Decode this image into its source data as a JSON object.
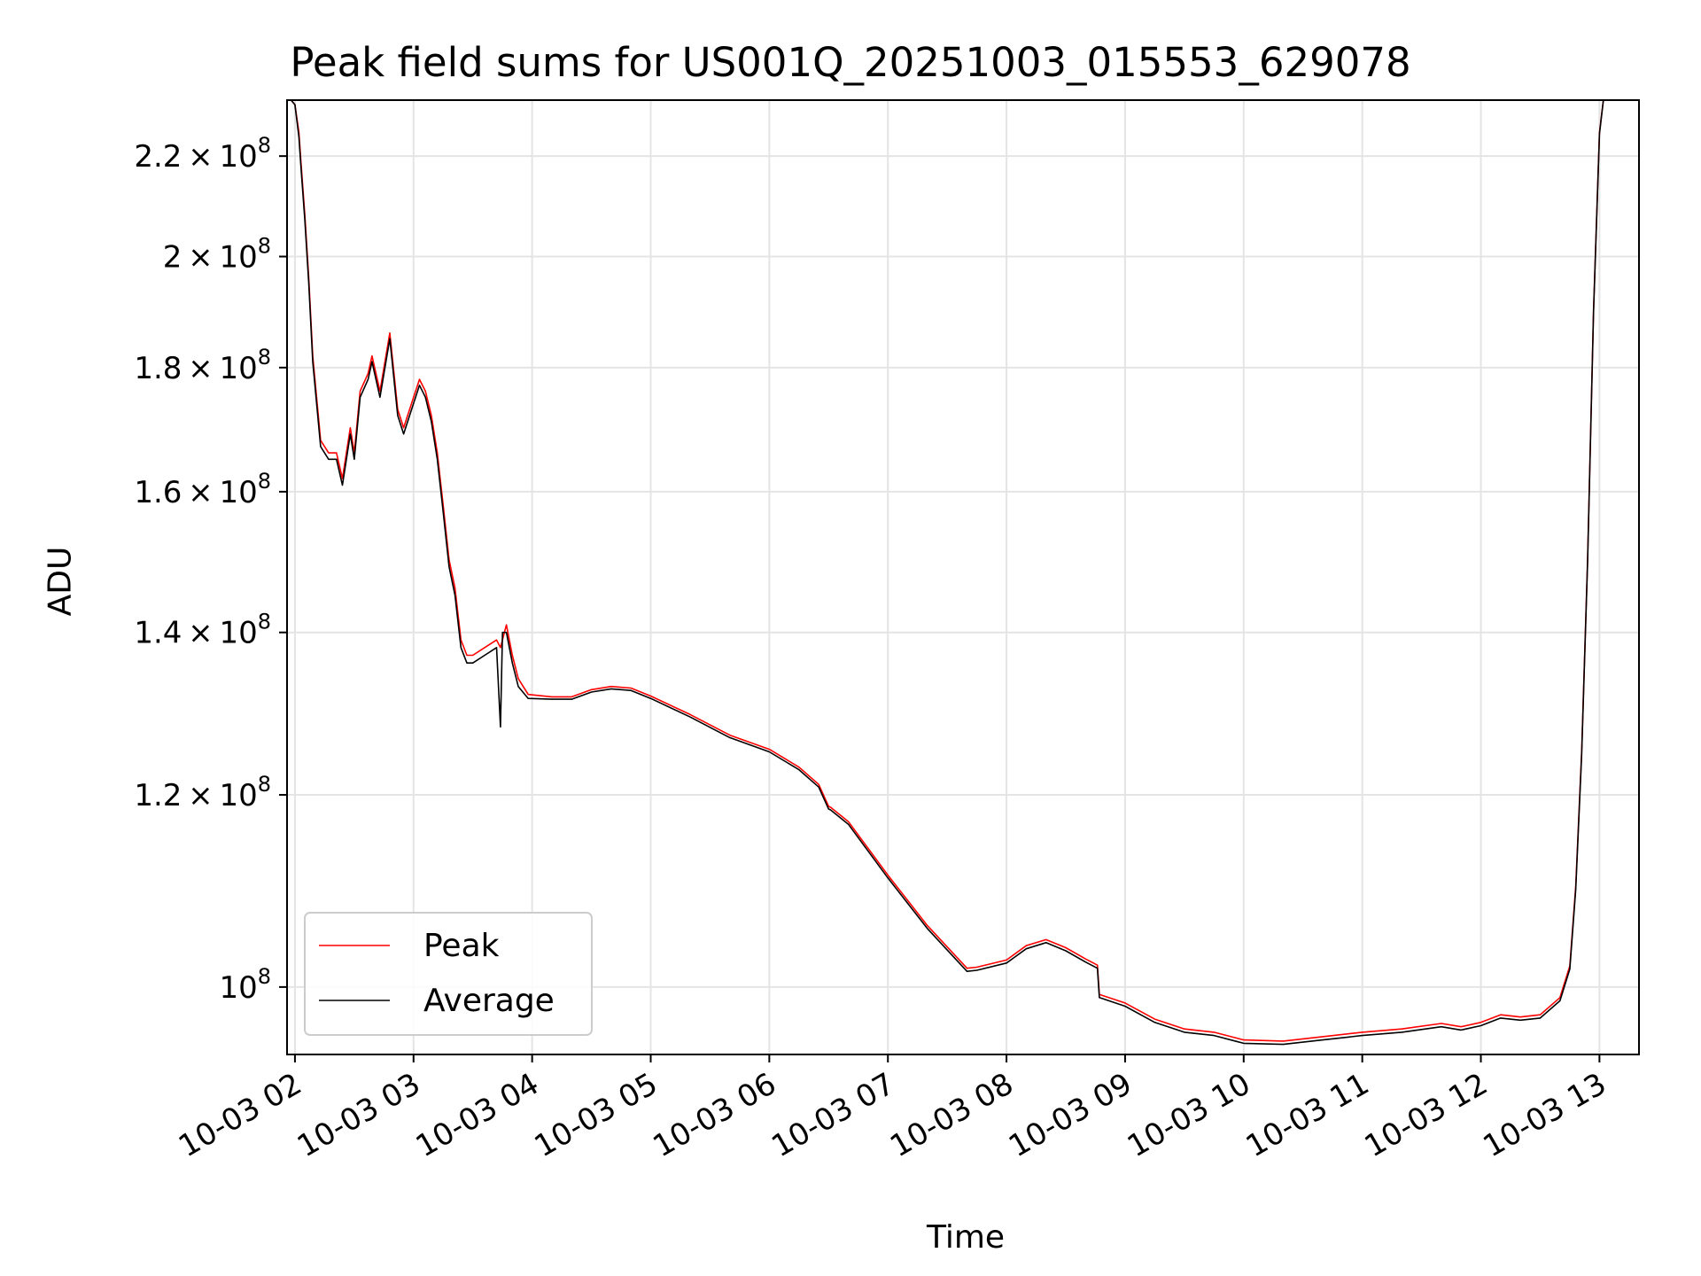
{
  "chart_data": {
    "type": "line",
    "title": "Peak field sums for US001Q_20251003_015553_629078",
    "xlabel": "Time",
    "ylabel": "ADU",
    "y_scale": "log",
    "grid": true,
    "legend_position": "lower left",
    "x_tick_labels": [
      "10-03 02",
      "10-03 03",
      "10-03 04",
      "10-03 05",
      "10-03 06",
      "10-03 07",
      "10-03 08",
      "10-03 09",
      "10-03 10",
      "10-03 11",
      "10-03 12",
      "10-03 13"
    ],
    "y_ticks": [
      {
        "value": 100000000,
        "mant": "",
        "exp": "10",
        "pow": "8"
      },
      {
        "value": 120000000,
        "mant": "1.2",
        "exp": "10",
        "pow": "8"
      },
      {
        "value": 140000000,
        "mant": "1.4",
        "exp": "10",
        "pow": "8"
      },
      {
        "value": 160000000,
        "mant": "1.6",
        "exp": "10",
        "pow": "8"
      },
      {
        "value": 180000000,
        "mant": "1.8",
        "exp": "10",
        "pow": "8"
      },
      {
        "value": 200000000,
        "mant": "2",
        "exp": "10",
        "pow": "8"
      },
      {
        "value": 220000000,
        "mant": "2.2",
        "exp": "10",
        "pow": "8"
      }
    ],
    "xlim": [
      "10-03 01:56",
      "10-03 13:20"
    ],
    "ylim": [
      93800000,
      232000000
    ],
    "series": [
      {
        "name": "Peak",
        "color": "#ff0000",
        "x": [
          "10-03 01:58",
          "10-03 02:00",
          "10-03 02:02",
          "10-03 02:03",
          "10-03 02:05",
          "10-03 02:07",
          "10-03 02:09",
          "10-03 02:13",
          "10-03 02:17",
          "10-03 02:21",
          "10-03 02:24",
          "10-03 02:28",
          "10-03 02:30",
          "10-03 02:33",
          "10-03 02:37",
          "10-03 02:39",
          "10-03 02:43",
          "10-03 02:48",
          "10-03 02:52",
          "10-03 02:55",
          "10-03 02:59",
          "10-03 03:03",
          "10-03 03:06",
          "10-03 03:09",
          "10-03 03:12",
          "10-03 03:15",
          "10-03 03:18",
          "10-03 03:21",
          "10-03 03:24",
          "10-03 03:27",
          "10-03 03:30",
          "10-03 03:36",
          "10-03 03:42",
          "10-03 03:44",
          "10-03 03:47",
          "10-03 03:50",
          "10-03 03:53",
          "10-03 03:58",
          "10-03 04:10",
          "10-03 04:20",
          "10-03 04:30",
          "10-03 04:40",
          "10-03 04:50",
          "10-03 05:00",
          "10-03 05:20",
          "10-03 05:40",
          "10-03 06:00",
          "10-03 06:15",
          "10-03 06:25",
          "10-03 06:30",
          "10-03 06:31",
          "10-03 06:40",
          "10-03 07:00",
          "10-03 07:20",
          "10-03 07:40",
          "10-03 07:45",
          "10-03 08:00",
          "10-03 08:10",
          "10-03 08:20",
          "10-03 08:30",
          "10-03 08:40",
          "10-03 08:46",
          "10-03 08:47",
          "10-03 09:00",
          "10-03 09:15",
          "10-03 09:30",
          "10-03 09:45",
          "10-03 10:00",
          "10-03 10:20",
          "10-03 10:40",
          "10-03 11:00",
          "10-03 11:20",
          "10-03 11:40",
          "10-03 11:50",
          "10-03 12:00",
          "10-03 12:10",
          "10-03 12:20",
          "10-03 12:30",
          "10-03 12:40",
          "10-03 12:45",
          "10-03 12:48",
          "10-03 12:51",
          "10-03 12:54",
          "10-03 12:57",
          "10-03 13:00",
          "10-03 13:02"
        ],
        "y": [
          232000000,
          231000000,
          225000000,
          219000000,
          208000000,
          196000000,
          182000000,
          168000000,
          166000000,
          166000000,
          162000000,
          170000000,
          166000000,
          176000000,
          179000000,
          182000000,
          176000000,
          186000000,
          173000000,
          170000000,
          174000000,
          178000000,
          176000000,
          172000000,
          166000000,
          158000000,
          150000000,
          146000000,
          139000000,
          137000000,
          137000000,
          138000000,
          139000000,
          138000000,
          141000000,
          137000000,
          134000000,
          132000000,
          131700000,
          131700000,
          132600000,
          133000000,
          132800000,
          131800000,
          129500000,
          127000000,
          125300000,
          123200000,
          121200000,
          118700000,
          118600000,
          117000000,
          111200000,
          106000000,
          101800000,
          101900000,
          102600000,
          104000000,
          104600000,
          103800000,
          102700000,
          102100000,
          99300000,
          98500000,
          97000000,
          96100000,
          95800000,
          95100000,
          95000000,
          95400000,
          95800000,
          96100000,
          96600000,
          96300000,
          96700000,
          97400000,
          97200000,
          97400000,
          99000000,
          102000000,
          110000000,
          125000000,
          150000000,
          190000000,
          225000000,
          232000000
        ]
      },
      {
        "name": "Average",
        "color": "#000000",
        "x": [
          "10-03 01:58",
          "10-03 02:00",
          "10-03 02:02",
          "10-03 02:03",
          "10-03 02:05",
          "10-03 02:07",
          "10-03 02:09",
          "10-03 02:13",
          "10-03 02:17",
          "10-03 02:21",
          "10-03 02:24",
          "10-03 02:28",
          "10-03 02:30",
          "10-03 02:33",
          "10-03 02:37",
          "10-03 02:39",
          "10-03 02:43",
          "10-03 02:48",
          "10-03 02:52",
          "10-03 02:55",
          "10-03 02:59",
          "10-03 03:03",
          "10-03 03:06",
          "10-03 03:09",
          "10-03 03:12",
          "10-03 03:15",
          "10-03 03:18",
          "10-03 03:21",
          "10-03 03:24",
          "10-03 03:27",
          "10-03 03:30",
          "10-03 03:36",
          "10-03 03:42",
          "10-03 03:44",
          "10-03 03:45",
          "10-03 03:47",
          "10-03 03:50",
          "10-03 03:53",
          "10-03 03:58",
          "10-03 04:10",
          "10-03 04:20",
          "10-03 04:30",
          "10-03 04:40",
          "10-03 04:50",
          "10-03 05:00",
          "10-03 05:20",
          "10-03 05:40",
          "10-03 06:00",
          "10-03 06:15",
          "10-03 06:25",
          "10-03 06:30",
          "10-03 06:31",
          "10-03 06:40",
          "10-03 07:00",
          "10-03 07:20",
          "10-03 07:40",
          "10-03 07:45",
          "10-03 08:00",
          "10-03 08:10",
          "10-03 08:20",
          "10-03 08:30",
          "10-03 08:40",
          "10-03 08:46",
          "10-03 08:47",
          "10-03 09:00",
          "10-03 09:15",
          "10-03 09:30",
          "10-03 09:45",
          "10-03 10:00",
          "10-03 10:20",
          "10-03 10:40",
          "10-03 11:00",
          "10-03 11:20",
          "10-03 11:40",
          "10-03 11:50",
          "10-03 12:00",
          "10-03 12:10",
          "10-03 12:20",
          "10-03 12:30",
          "10-03 12:40",
          "10-03 12:45",
          "10-03 12:48",
          "10-03 12:51",
          "10-03 12:54",
          "10-03 12:57",
          "10-03 13:00",
          "10-03 13:02"
        ],
        "y": [
          232000000,
          231000000,
          224000000,
          218000000,
          207000000,
          195000000,
          181000000,
          167000000,
          165000000,
          165000000,
          161000000,
          169000000,
          165000000,
          175000000,
          178000000,
          181000000,
          175000000,
          185000000,
          172000000,
          169000000,
          173000000,
          177000000,
          175000000,
          171000000,
          165000000,
          157000000,
          149000000,
          145000000,
          138000000,
          136000000,
          136000000,
          137000000,
          138000000,
          128000000,
          140000000,
          140000000,
          136000000,
          133000000,
          131500000,
          131400000,
          131400000,
          132300000,
          132700000,
          132500000,
          131500000,
          129200000,
          126700000,
          125000000,
          122900000,
          120900000,
          118400000,
          118300000,
          116700000,
          110900000,
          105700000,
          101500000,
          101600000,
          102300000,
          103700000,
          104300000,
          103500000,
          102400000,
          101800000,
          99000000,
          98200000,
          96700000,
          95800000,
          95500000,
          94800000,
          94700000,
          95100000,
          95500000,
          95800000,
          96300000,
          96000000,
          96400000,
          97100000,
          96900000,
          97100000,
          98700000,
          101700000,
          109700000,
          124700000,
          149700000,
          189700000,
          224700000,
          232000000
        ]
      }
    ]
  }
}
